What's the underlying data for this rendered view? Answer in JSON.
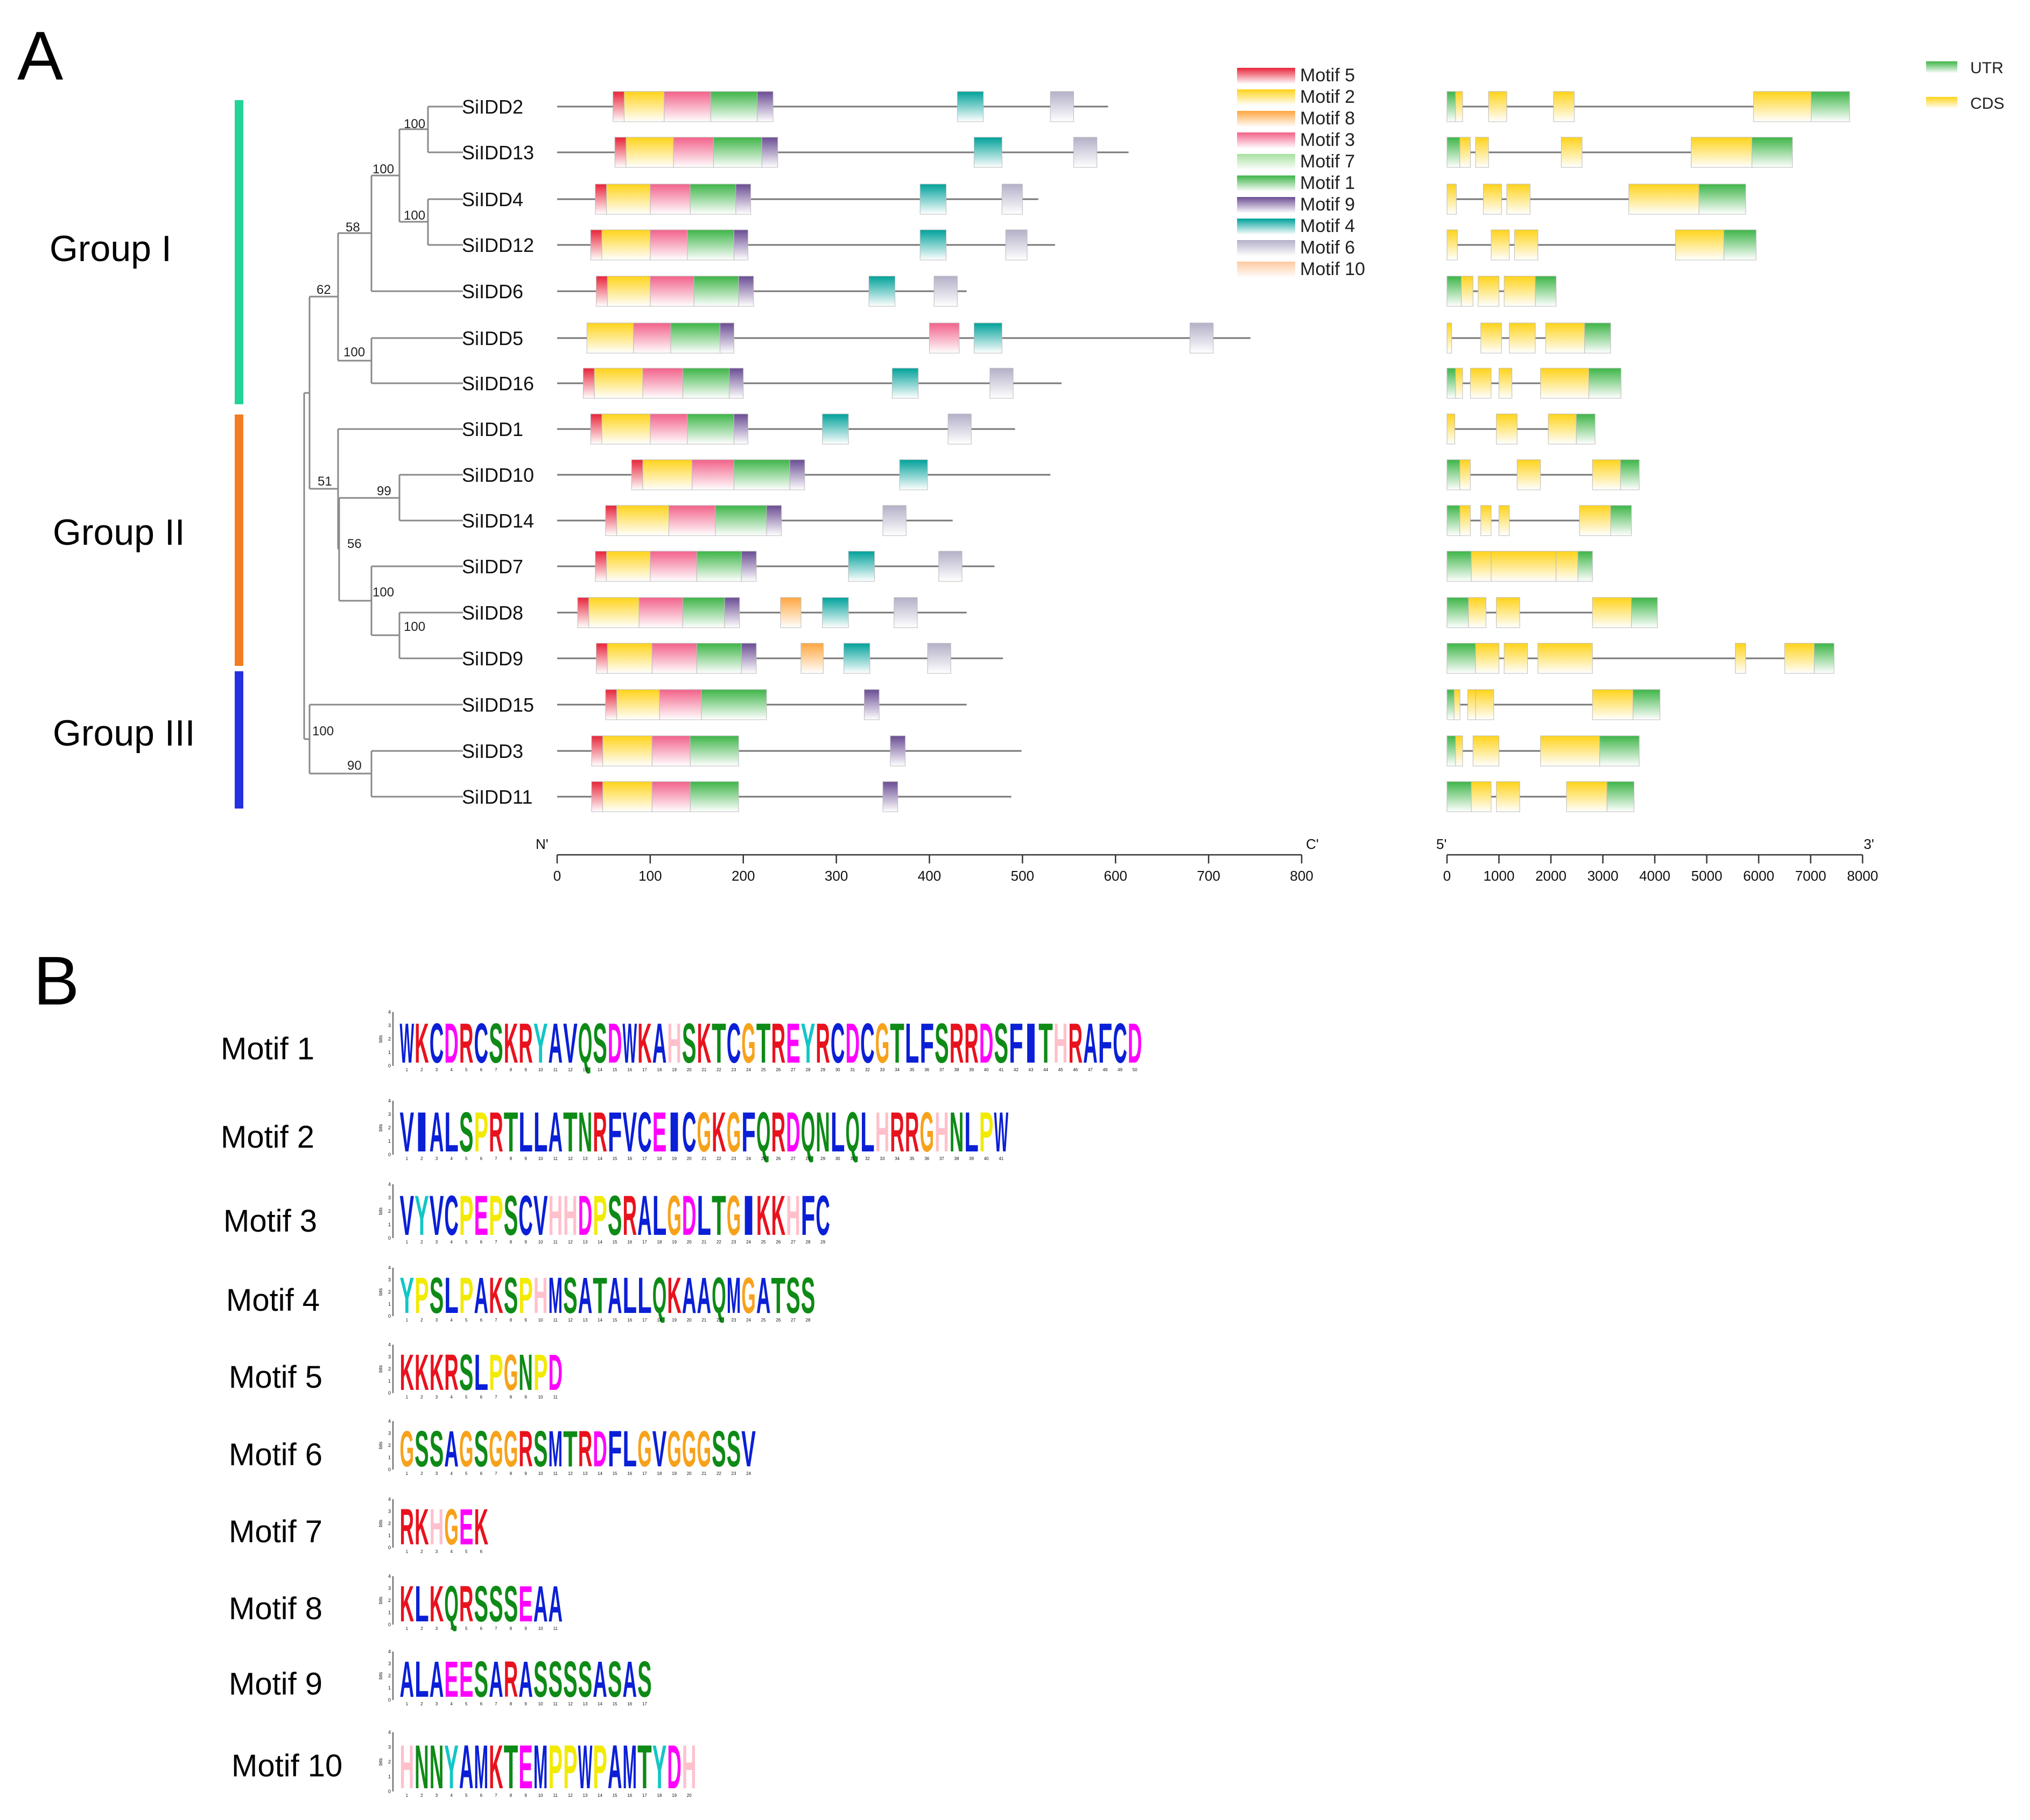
{
  "panel_a": {
    "letter": "A",
    "groups": [
      {
        "label": "Group I",
        "color": "#22d39a"
      },
      {
        "label": "Group II",
        "color": "#f47c20"
      },
      {
        "label": "Group III",
        "color": "#2531e0"
      }
    ],
    "genes": [
      "SiIDD2",
      "SiIDD13",
      "SiIDD4",
      "SiIDD12",
      "SiIDD6",
      "SiIDD5",
      "SiIDD16",
      "SiIDD1",
      "SiIDD10",
      "SiIDD14",
      "SiIDD7",
      "SiIDD8",
      "SiIDD9",
      "SiIDD15",
      "SiIDD3",
      "SiIDD11"
    ],
    "bootstrap_values": [
      "100",
      "100",
      "100",
      "58",
      "62",
      "100",
      "99",
      "56",
      "100",
      "51",
      "100",
      "100",
      "90"
    ],
    "motif_legend": [
      {
        "label": "Motif 5",
        "color": "#e8243a"
      },
      {
        "label": "Motif 2",
        "color": "#ffd31a"
      },
      {
        "label": "Motif 8",
        "color": "#ffa640"
      },
      {
        "label": "Motif 3",
        "color": "#f2628a"
      },
      {
        "label": "Motif 7",
        "color": "#a8e0a0"
      },
      {
        "label": "Motif 1",
        "color": "#3eb548"
      },
      {
        "label": "Motif 9",
        "color": "#6a4c93"
      },
      {
        "label": "Motif 4",
        "color": "#00a19a"
      },
      {
        "label": "Motif 6",
        "color": "#b3b0c8"
      },
      {
        "label": "Motif 10",
        "color": "#ffc9a0"
      }
    ],
    "structure_legend": [
      {
        "label": "UTR",
        "color": "#3eb548"
      },
      {
        "label": "CDS",
        "color": "#ffd31a"
      }
    ],
    "protein_axis": {
      "start_label": "N'",
      "end_label": "C'",
      "ticks": [
        0,
        100,
        200,
        300,
        400,
        500,
        600,
        700,
        800
      ]
    },
    "gene_axis": {
      "start_label": "5'",
      "end_label": "3'",
      "ticks": [
        0,
        1000,
        2000,
        3000,
        4000,
        5000,
        6000,
        7000,
        8000
      ]
    },
    "protein_lengths": [
      592,
      614,
      517,
      535,
      440,
      745,
      542,
      492,
      530,
      425,
      470,
      440,
      479,
      440,
      499,
      488
    ],
    "protein_motifs": [
      [
        [
          5,
          60,
          72
        ],
        [
          2,
          72,
          115
        ],
        [
          3,
          115,
          165
        ],
        [
          1,
          165,
          215
        ],
        [
          9,
          215,
          232
        ],
        [
          4,
          430,
          458
        ],
        [
          6,
          530,
          555
        ]
      ],
      [
        [
          5,
          62,
          74
        ],
        [
          2,
          74,
          125
        ],
        [
          3,
          125,
          168
        ],
        [
          1,
          168,
          220
        ],
        [
          9,
          220,
          237
        ],
        [
          4,
          448,
          478
        ],
        [
          6,
          555,
          580
        ]
      ],
      [
        [
          5,
          41,
          53
        ],
        [
          2,
          53,
          100
        ],
        [
          3,
          100,
          143
        ],
        [
          1,
          143,
          192
        ],
        [
          9,
          192,
          208
        ],
        [
          4,
          390,
          418
        ],
        [
          6,
          478,
          500
        ]
      ],
      [
        [
          5,
          36,
          48
        ],
        [
          2,
          48,
          100
        ],
        [
          3,
          100,
          140
        ],
        [
          1,
          140,
          190
        ],
        [
          9,
          190,
          205
        ],
        [
          4,
          390,
          418
        ],
        [
          6,
          482,
          505
        ]
      ],
      [
        [
          5,
          42,
          54
        ],
        [
          2,
          54,
          100
        ],
        [
          3,
          100,
          147
        ],
        [
          1,
          147,
          195
        ],
        [
          9,
          195,
          211
        ],
        [
          4,
          335,
          363
        ],
        [
          6,
          405,
          430
        ]
      ],
      [
        [
          2,
          32,
          82
        ],
        [
          3,
          82,
          122
        ],
        [
          1,
          122,
          175
        ],
        [
          9,
          175,
          190
        ],
        [
          3,
          400,
          432
        ],
        [
          4,
          448,
          478
        ],
        [
          6,
          680,
          705
        ]
      ],
      [
        [
          5,
          28,
          40
        ],
        [
          2,
          40,
          92
        ],
        [
          3,
          92,
          135
        ],
        [
          1,
          135,
          185
        ],
        [
          9,
          185,
          200
        ],
        [
          4,
          360,
          388
        ],
        [
          6,
          465,
          490
        ]
      ],
      [
        [
          5,
          36,
          48
        ],
        [
          2,
          48,
          100
        ],
        [
          3,
          100,
          140
        ],
        [
          1,
          140,
          190
        ],
        [
          9,
          190,
          205
        ],
        [
          4,
          285,
          313
        ],
        [
          6,
          420,
          445
        ]
      ],
      [
        [
          5,
          80,
          92
        ],
        [
          2,
          92,
          145
        ],
        [
          3,
          145,
          190
        ],
        [
          1,
          190,
          250
        ],
        [
          9,
          250,
          266
        ],
        [
          4,
          368,
          398
        ]
      ],
      [
        [
          5,
          52,
          64
        ],
        [
          2,
          64,
          120
        ],
        [
          3,
          120,
          170
        ],
        [
          1,
          170,
          225
        ],
        [
          9,
          225,
          241
        ],
        [
          6,
          350,
          375
        ]
      ],
      [
        [
          5,
          41,
          53
        ],
        [
          2,
          53,
          100
        ],
        [
          3,
          100,
          150
        ],
        [
          1,
          150,
          198
        ],
        [
          9,
          198,
          214
        ],
        [
          4,
          313,
          341
        ],
        [
          6,
          410,
          435
        ]
      ],
      [
        [
          5,
          22,
          34
        ],
        [
          2,
          34,
          88
        ],
        [
          3,
          88,
          135
        ],
        [
          1,
          135,
          180
        ],
        [
          9,
          180,
          196
        ],
        [
          8,
          240,
          262
        ],
        [
          4,
          285,
          313
        ],
        [
          6,
          362,
          387
        ]
      ],
      [
        [
          5,
          42,
          54
        ],
        [
          2,
          54,
          102
        ],
        [
          3,
          102,
          150
        ],
        [
          1,
          150,
          198
        ],
        [
          9,
          198,
          214
        ],
        [
          8,
          262,
          286
        ],
        [
          4,
          308,
          336
        ],
        [
          6,
          398,
          423
        ]
      ],
      [
        [
          5,
          52,
          64
        ],
        [
          2,
          64,
          110
        ],
        [
          3,
          110,
          155
        ],
        [
          1,
          155,
          225
        ],
        [
          9,
          330,
          346
        ]
      ],
      [
        [
          5,
          37,
          49
        ],
        [
          2,
          49,
          102
        ],
        [
          3,
          102,
          143
        ],
        [
          1,
          143,
          195
        ],
        [
          9,
          358,
          374
        ]
      ],
      [
        [
          5,
          37,
          49
        ],
        [
          2,
          49,
          102
        ],
        [
          3,
          102,
          143
        ],
        [
          1,
          143,
          195
        ],
        [
          9,
          350,
          366
        ]
      ]
    ],
    "gene_lengths": [
      7750,
      6650,
      5750,
      5950,
      2100,
      3150,
      3350,
      2850,
      3700,
      3550,
      2800,
      4050,
      7450,
      4100,
      3700,
      3600
    ],
    "gene_exons": [
      [
        [
          "U",
          0,
          300
        ],
        [
          "U",
          800,
          1150
        ],
        [
          "U",
          2050,
          2450
        ],
        [
          "U",
          5900,
          7750
        ]
      ],
      [
        [
          "U",
          0,
          450
        ],
        [
          "U",
          550,
          800
        ],
        [
          "U",
          2200,
          2600
        ],
        [
          "U",
          4700,
          6650
        ]
      ],
      [
        [
          "U",
          0,
          180
        ],
        [
          "U",
          700,
          1050
        ],
        [
          "U",
          1150,
          1600
        ],
        [
          "U",
          3500,
          5750
        ]
      ],
      [
        [
          "U",
          0,
          200
        ],
        [
          "U",
          850,
          1200
        ],
        [
          "U",
          1300,
          1750
        ],
        [
          "U",
          4400,
          5950
        ]
      ],
      [
        [
          "U",
          0,
          500
        ],
        [
          "U",
          600,
          1000
        ],
        [
          "U",
          1100,
          2100
        ]
      ],
      [
        [
          "U",
          0,
          90
        ],
        [
          "U",
          650,
          1050
        ],
        [
          "U",
          1200,
          1700
        ],
        [
          "U",
          1900,
          3150
        ]
      ],
      [
        [
          "U",
          0,
          300
        ],
        [
          "U",
          450,
          850
        ],
        [
          "U",
          1000,
          1250
        ],
        [
          "U",
          1800,
          3350
        ]
      ],
      [
        [
          "U",
          0,
          150
        ],
        [
          "U",
          950,
          1350
        ],
        [
          "U",
          1950,
          2850
        ]
      ],
      [
        [
          "U",
          0,
          450
        ],
        [
          "U",
          1350,
          1800
        ],
        [
          "U",
          2800,
          3700
        ]
      ],
      [
        [
          "U",
          0,
          450
        ],
        [
          "U",
          650,
          850
        ],
        [
          "U",
          1000,
          1200
        ],
        [
          "U",
          2550,
          3550
        ]
      ],
      [
        [
          "U",
          0,
          850
        ],
        [
          "U",
          850,
          2100
        ],
        [
          "U",
          2100,
          2800
        ]
      ],
      [
        [
          "U",
          0,
          750
        ],
        [
          "U",
          950,
          1400
        ],
        [
          "U",
          2800,
          4050
        ]
      ],
      [
        [
          "U",
          0,
          1000
        ],
        [
          "U",
          1100,
          1550
        ],
        [
          "U",
          1750,
          2800
        ],
        [
          "U",
          5550,
          5750
        ],
        [
          "U",
          6500,
          7450
        ]
      ],
      [
        [
          "U",
          0,
          250
        ],
        [
          "U",
          400,
          550
        ],
        [
          "U",
          550,
          900
        ],
        [
          "U",
          2800,
          4100
        ]
      ],
      [
        [
          "U",
          0,
          300
        ],
        [
          "U",
          500,
          1000
        ],
        [
          "U",
          1800,
          3700
        ]
      ],
      [
        [
          "U",
          0,
          850
        ],
        [
          "U",
          950,
          1400
        ],
        [
          "U",
          2300,
          3600
        ]
      ]
    ]
  },
  "panel_b": {
    "letter": "B",
    "axis_label": "bits",
    "y_ticks": [
      "4",
      "3",
      "2",
      "1",
      "0"
    ],
    "motifs": [
      {
        "name": "Motif 1",
        "sequence": "WKCDRCSKRYAVQSDWKAHSKTCGTREYRCDCGTLFSRRDSFITHRAFCD"
      },
      {
        "name": "Motif 2",
        "sequence": "VIALSPRTLLATNRFVCEICGKGFQRDQNLQLHRRGHNLPW"
      },
      {
        "name": "Motif 3",
        "sequence": "VYVCPEPSCVHHDPSRALGDLTGIKKHFC"
      },
      {
        "name": "Motif 4",
        "sequence": "YPSLPAKSPHMSATALLQKAAQMGATSS"
      },
      {
        "name": "Motif 5",
        "sequence": "KKKRSLPGNPD"
      },
      {
        "name": "Motif 6",
        "sequence": "GSSAGSGGRSMTRDFLGVGGGSSV"
      },
      {
        "name": "Motif 7",
        "sequence": "RKHGEK"
      },
      {
        "name": "Motif 8",
        "sequence": "KLKQRSSSEAA"
      },
      {
        "name": "Motif 9",
        "sequence": "ALAEESARASSSSASAS"
      },
      {
        "name": "Motif 10",
        "sequence": "HNNYAMKTEMPPWPAMTYDH"
      }
    ]
  }
}
